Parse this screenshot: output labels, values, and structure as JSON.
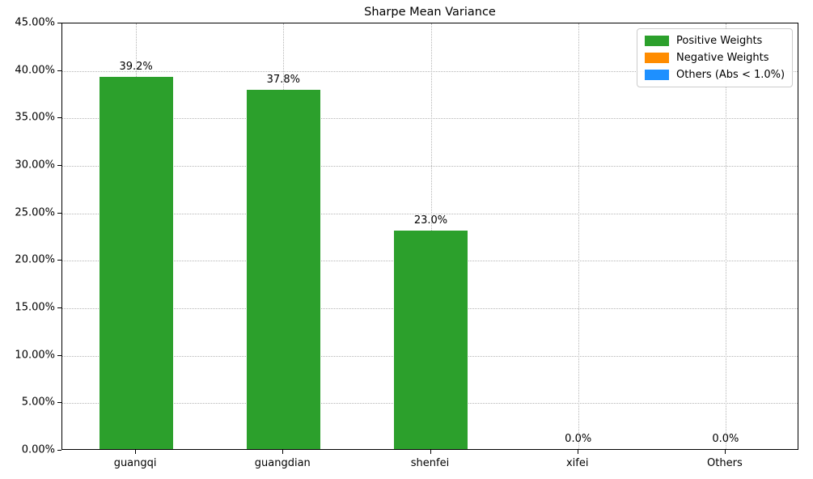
{
  "chart_data": {
    "type": "bar",
    "title": "Sharpe Mean Variance",
    "categories": [
      "guangqi",
      "guangdian",
      "shenfei",
      "xifei",
      "Others"
    ],
    "values": [
      39.2,
      37.8,
      23.0,
      0.0,
      0.0
    ],
    "bar_labels": [
      "39.2%",
      "37.8%",
      "23.0%",
      "0.0%",
      "0.0%"
    ],
    "bar_color_key": [
      "positive",
      "positive",
      "positive",
      "positive",
      "positive"
    ],
    "colors": {
      "positive": "#2ca02c",
      "negative": "#ff8c00",
      "others": "#1e90ff"
    },
    "xlabel": "",
    "ylabel": "",
    "ylim": [
      0,
      45
    ],
    "yticks": [
      {
        "value": 0,
        "label": "0.00%"
      },
      {
        "value": 5,
        "label": "5.00%"
      },
      {
        "value": 10,
        "label": "10.00%"
      },
      {
        "value": 15,
        "label": "15.00%"
      },
      {
        "value": 20,
        "label": "20.00%"
      },
      {
        "value": 25,
        "label": "25.00%"
      },
      {
        "value": 30,
        "label": "30.00%"
      },
      {
        "value": 35,
        "label": "35.00%"
      },
      {
        "value": 40,
        "label": "40.00%"
      },
      {
        "value": 45,
        "label": "45.00%"
      }
    ],
    "grid": "dotted-both-axes",
    "legend": {
      "position": "upper right",
      "entries": [
        {
          "label": "Positive Weights",
          "color_key": "positive"
        },
        {
          "label": "Negative Weights",
          "color_key": "negative"
        },
        {
          "label": "Others (Abs < 1.0%)",
          "color_key": "others"
        }
      ]
    }
  }
}
